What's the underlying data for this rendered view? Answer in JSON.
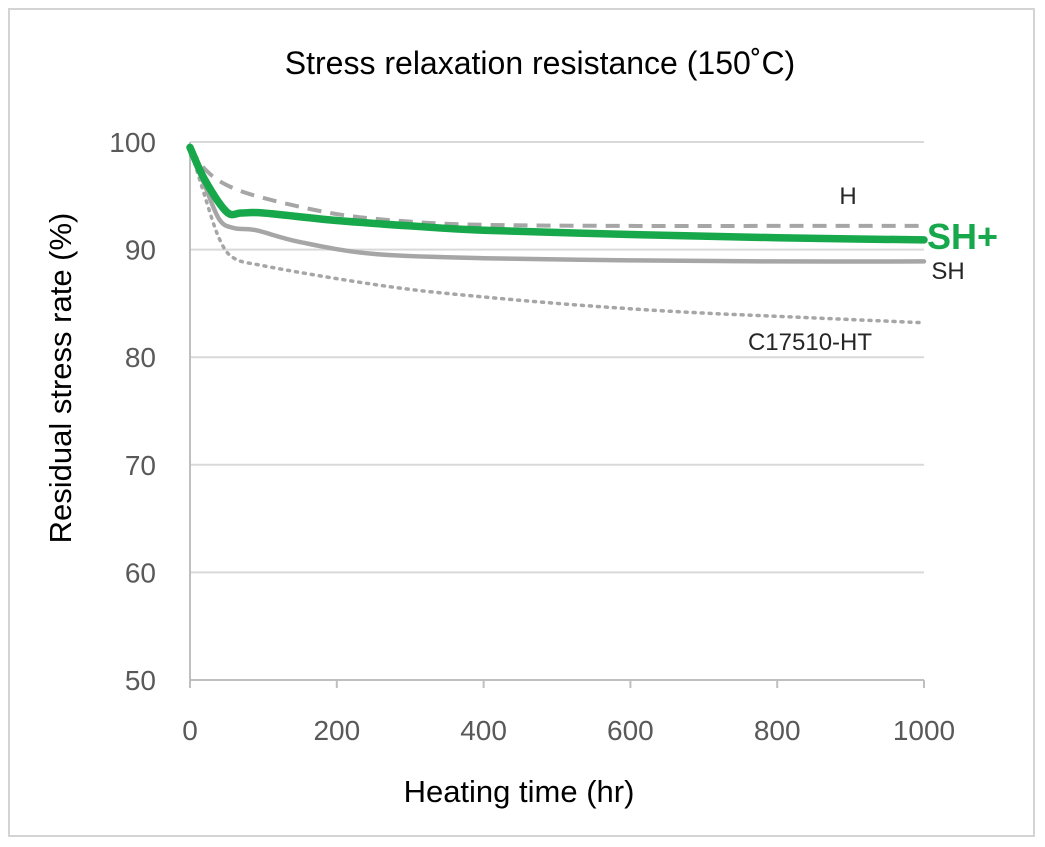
{
  "chart_data": {
    "type": "line",
    "title": "Stress relaxation resistance (150˚C)",
    "xlabel": "Heating time (hr)",
    "ylabel": "Residual stress rate (%)",
    "xlim": [
      0,
      1000
    ],
    "ylim": [
      50,
      100
    ],
    "xticks": [
      0,
      200,
      400,
      600,
      800,
      1000
    ],
    "yticks": [
      50,
      60,
      70,
      80,
      90,
      100
    ],
    "xtick_labels": [
      "0",
      "200",
      "400",
      "600",
      "800",
      "1000"
    ],
    "ytick_labels": [
      "50",
      "60",
      "70",
      "80",
      "90",
      "100"
    ],
    "grid": "horizontal",
    "legend": "none (labels at line ends)",
    "series": [
      {
        "name": "H",
        "color": "#a6a6a6",
        "style": "dashed",
        "x": [
          0,
          20,
          50,
          100,
          200,
          300,
          400,
          600,
          800,
          1000
        ],
        "y": [
          99.5,
          97.5,
          96.0,
          94.8,
          93.3,
          92.6,
          92.3,
          92.2,
          92.2,
          92.2
        ]
      },
      {
        "name": "SH+",
        "color": "#16a84a",
        "style": "solid-bold",
        "x": [
          0,
          20,
          50,
          70,
          100,
          200,
          300,
          400,
          600,
          800,
          1000
        ],
        "y": [
          99.5,
          96.5,
          93.5,
          93.4,
          93.4,
          92.7,
          92.2,
          91.8,
          91.4,
          91.1,
          90.9
        ]
      },
      {
        "name": "SH",
        "color": "#a6a6a6",
        "style": "solid",
        "x": [
          0,
          20,
          40,
          60,
          90,
          150,
          250,
          400,
          600,
          800,
          1000
        ],
        "y": [
          99.5,
          96.0,
          92.8,
          92.0,
          91.8,
          90.7,
          89.6,
          89.2,
          89.0,
          88.9,
          88.9
        ]
      },
      {
        "name": "C17510-HT",
        "color": "#a6a6a6",
        "style": "dotted",
        "x": [
          0,
          20,
          40,
          60,
          100,
          200,
          300,
          400,
          500,
          600,
          700,
          800,
          900,
          1000
        ],
        "y": [
          99.5,
          95.0,
          91.0,
          89.2,
          88.5,
          87.3,
          86.3,
          85.6,
          85.0,
          84.5,
          84.1,
          83.8,
          83.5,
          83.2
        ]
      }
    ]
  }
}
